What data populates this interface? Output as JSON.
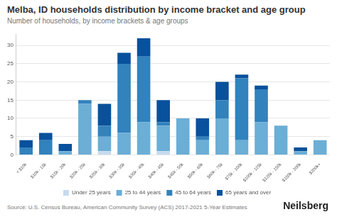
{
  "chart_data": {
    "type": "bar",
    "title": "Melba, ID households distribution by income bracket and age group",
    "subtitle": "Number of households, by income brackets & age groups",
    "source": "Source: U.S. Census Bureau, American Community Survey (ACS) 2017-2021 5-Year Estimates",
    "brand": "Neilsberg",
    "categories": [
      "< $10k",
      "$10k - 15k",
      "$15k - 20k",
      "$20k - 25k",
      "$25k - 30k",
      "$30k - 35k",
      "$35k - 40k",
      "$40k - 45k",
      "$45k - 50k",
      "$50k - 60k",
      "$60k - 75k",
      "$75k - 100k",
      "$100k - 125k",
      "$125k - 150k",
      "$150k - 200k",
      "$200k+"
    ],
    "series": [
      {
        "name": "Under 25 years",
        "color": "#c6dbef",
        "values": [
          0,
          0,
          0,
          0,
          1,
          0,
          0,
          1,
          0,
          0,
          0,
          0,
          0,
          0,
          0,
          0
        ]
      },
      {
        "name": "25 to 44 years",
        "color": "#6baed6",
        "values": [
          0,
          0,
          1,
          14,
          4,
          6,
          9,
          7,
          10,
          4,
          10,
          4,
          9,
          8,
          1,
          4
        ]
      },
      {
        "name": "45 to 64 years",
        "color": "#3182bd",
        "values": [
          2,
          4,
          0,
          1,
          3,
          19,
          18,
          1,
          0,
          1,
          5,
          17,
          9,
          0,
          0,
          0
        ]
      },
      {
        "name": "65 years and over",
        "color": "#08519c",
        "values": [
          2,
          2,
          2,
          0,
          6,
          3,
          5,
          6,
          0,
          5,
          5,
          1,
          1,
          0,
          1,
          0
        ]
      }
    ],
    "stacked": true,
    "ylim": [
      0,
      33
    ],
    "yticks": [
      0,
      5,
      10,
      15,
      20,
      25,
      30
    ],
    "grid": true,
    "legend": "bottom"
  }
}
